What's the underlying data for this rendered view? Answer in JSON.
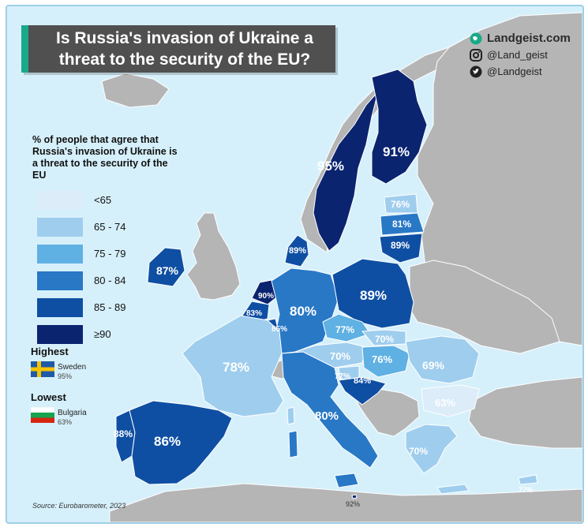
{
  "title": "Is Russia's invasion of Ukraine a threat to the security of the EU?",
  "brand": {
    "site": "Landgeist.com",
    "instagram": "@Land_geist",
    "twitter": "@Landgeist"
  },
  "legend": {
    "title": "% of people that agree that Russia's invasion of Ukraine is a threat to the security of the EU",
    "bins": [
      {
        "label": "<65",
        "color": "#dcecf9"
      },
      {
        "label": "65 - 74",
        "color": "#9fcdee"
      },
      {
        "label": "75 - 79",
        "color": "#5fb0e3"
      },
      {
        "label": "80 - 84",
        "color": "#2878c6"
      },
      {
        "label": "85 - 89",
        "color": "#0f4fa3"
      },
      {
        "label": "≥90",
        "color": "#0b2470"
      }
    ]
  },
  "highest": {
    "heading": "Highest",
    "country": "Sweden",
    "value": "95%"
  },
  "lowest": {
    "heading": "Lowest",
    "country": "Bulgaria",
    "value": "63%"
  },
  "source": "Source: Eurobarometer, 2023",
  "colors": {
    "sea": "#d6f0fb",
    "non_eu": "#b5b5b5",
    "title_bg": "#505050",
    "title_accent": "#1aa98a"
  },
  "regions": [
    {
      "value": "95%"
    },
    {
      "value": "91%"
    },
    {
      "value": "76%"
    },
    {
      "value": "81%"
    },
    {
      "value": "89%"
    },
    {
      "value": "89%"
    },
    {
      "value": "87%"
    },
    {
      "value": "90%"
    },
    {
      "value": "83%"
    },
    {
      "value": "85%"
    },
    {
      "value": "80%"
    },
    {
      "value": "89%"
    },
    {
      "value": "77%"
    },
    {
      "value": "70%"
    },
    {
      "value": "70%"
    },
    {
      "value": "76%"
    },
    {
      "value": "69%"
    },
    {
      "value": "78%"
    },
    {
      "value": "77%"
    },
    {
      "value": "84%"
    },
    {
      "value": "63%"
    },
    {
      "value": "80%"
    },
    {
      "value": "88%"
    },
    {
      "value": "86%"
    },
    {
      "value": "70%"
    },
    {
      "value": "92%"
    },
    {
      "value": "77%"
    }
  ]
}
